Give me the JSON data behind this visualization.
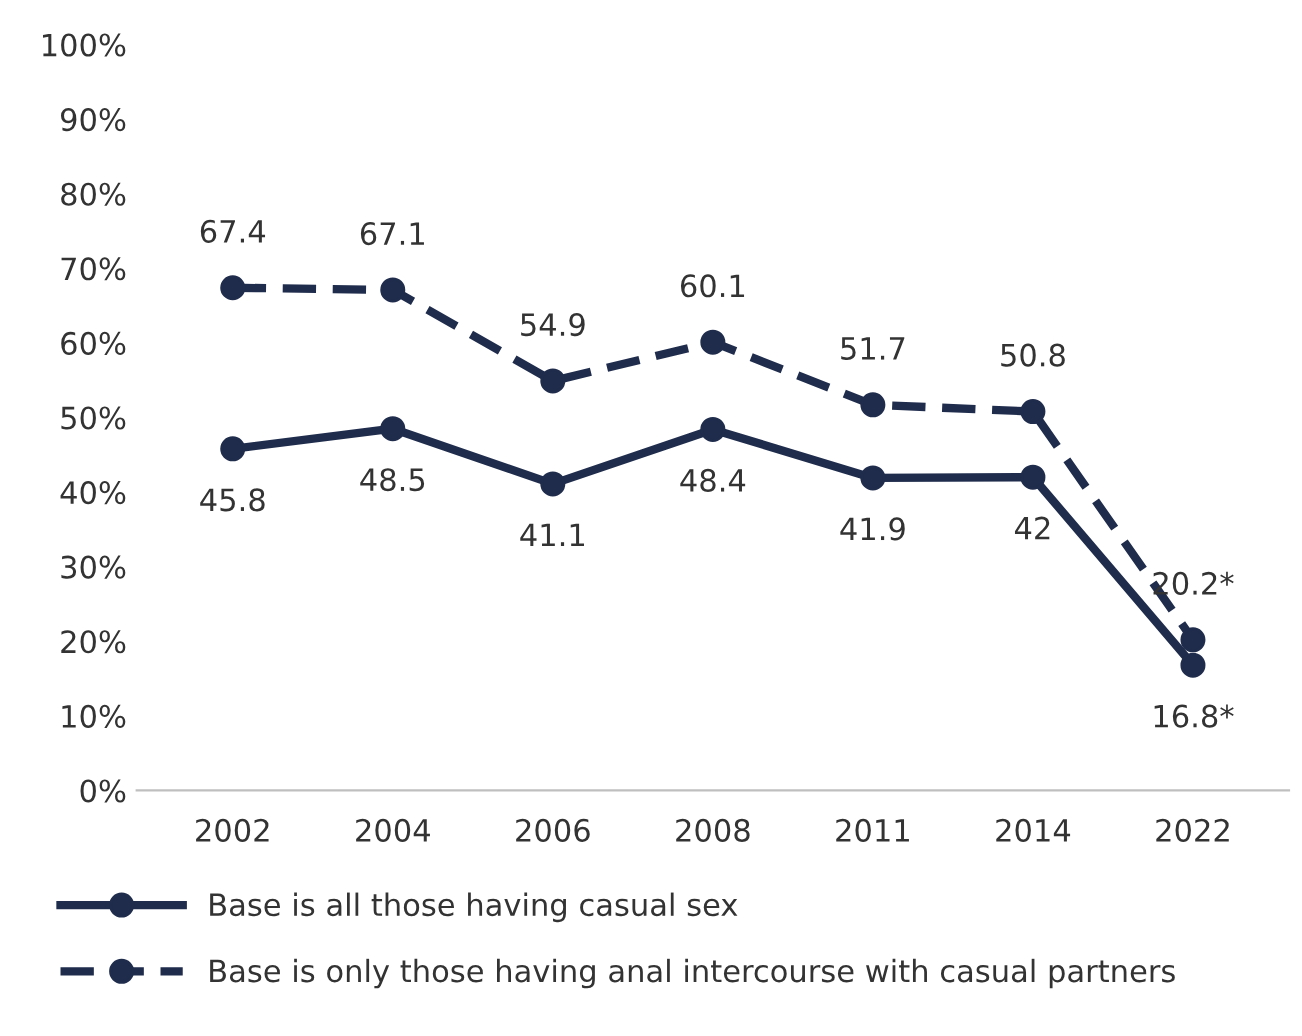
{
  "chart_data": {
    "type": "line",
    "categories": [
      "2002",
      "2004",
      "2006",
      "2008",
      "2011",
      "2014",
      "2022"
    ],
    "series": [
      {
        "name": "Base is all those having casual sex",
        "color": "#1f2c4c",
        "line_style": "solid",
        "values": [
          45.8,
          48.5,
          41.1,
          48.4,
          41.9,
          42,
          16.8
        ],
        "value_labels": [
          "45.8",
          "48.5",
          "41.1",
          "48.4",
          "41.9",
          "42",
          "16.8*"
        ]
      },
      {
        "name": "Base is only those having anal intercourse with casual partners",
        "color": "#1f2c4c",
        "line_style": "dashed",
        "values": [
          67.4,
          67.1,
          54.9,
          60.1,
          51.7,
          50.8,
          20.2
        ],
        "value_labels": [
          "67.4",
          "67.1",
          "54.9",
          "60.1",
          "51.7",
          "50.8",
          "20.2*"
        ]
      }
    ],
    "ylim": [
      0,
      100
    ],
    "yticks": [
      {
        "value": 0,
        "label": "0%"
      },
      {
        "value": 10,
        "label": "10%"
      },
      {
        "value": 20,
        "label": "20%"
      },
      {
        "value": 30,
        "label": "30%"
      },
      {
        "value": 40,
        "label": "40%"
      },
      {
        "value": 50,
        "label": "50%"
      },
      {
        "value": 60,
        "label": "60%"
      },
      {
        "value": 70,
        "label": "70%"
      },
      {
        "value": 80,
        "label": "80%"
      },
      {
        "value": 90,
        "label": "90%"
      },
      {
        "value": 100,
        "label": "100%"
      }
    ],
    "marker": "circle",
    "legend": "bottom"
  }
}
